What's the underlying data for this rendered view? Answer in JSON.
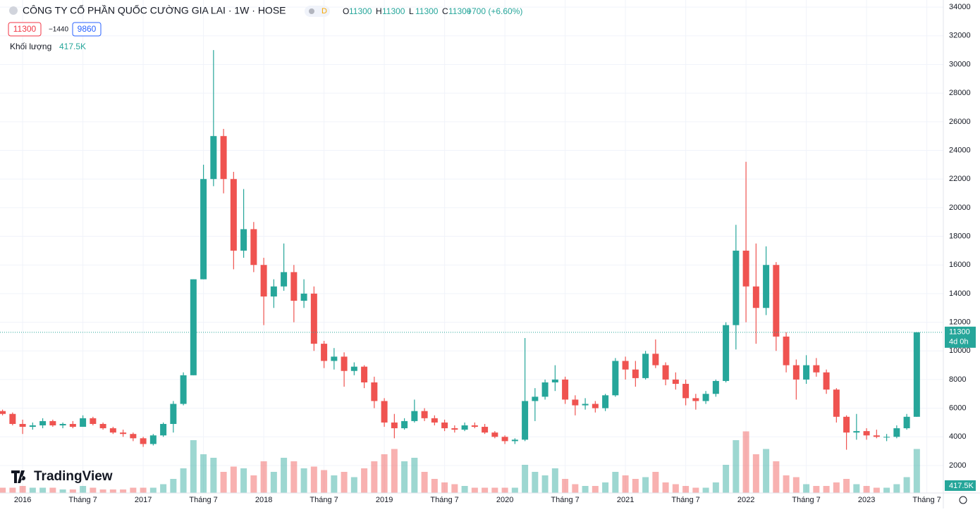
{
  "chart_data": {
    "type": "candlestick",
    "title": "CÔNG TY CỔ PHẦN QUỐC CƯỜNG GIA LAI · 1W · HOSE",
    "timeframe_badge": "D",
    "ohlc": [
      {
        "key": "O",
        "value": 11300
      },
      {
        "key": "H",
        "value": 11300
      },
      {
        "key": "L",
        "value": 11300
      },
      {
        "key": "C",
        "value": 11300
      }
    ],
    "change_label": "+700 (+6.60%)",
    "price_boxes": [
      11300,
      {
        "value": -1440,
        "label": "−1440"
      },
      9860
    ],
    "volume_title": "Khối lượng",
    "volume_value": {
      "value": 417500,
      "label": "417.5K"
    },
    "last_price": 11300,
    "countdown": "4d 0h",
    "brand": "TradingView",
    "up_color": "#26a69a",
    "down_color": "#ef5350",
    "ylim": [
      80,
      34500
    ],
    "yticks": [
      2000,
      4000,
      6000,
      8000,
      10000,
      12000,
      14000,
      16000,
      18000,
      20000,
      22000,
      24000,
      26000,
      28000,
      30000,
      32000,
      34000
    ],
    "vlim": [
      0,
      40000000
    ],
    "grid": true,
    "categories": [
      null,
      null,
      "2016",
      null,
      null,
      null,
      null,
      null,
      "Tháng 7",
      null,
      null,
      null,
      null,
      null,
      "2017",
      null,
      null,
      null,
      null,
      null,
      "Tháng 7",
      null,
      null,
      null,
      null,
      null,
      "2018",
      null,
      null,
      null,
      null,
      null,
      "Tháng 7",
      null,
      null,
      null,
      null,
      null,
      "2019",
      null,
      null,
      null,
      null,
      null,
      "Tháng 7",
      null,
      null,
      null,
      null,
      null,
      "2020",
      null,
      null,
      null,
      null,
      null,
      "Tháng 7",
      null,
      null,
      null,
      null,
      null,
      "2021",
      null,
      null,
      null,
      null,
      null,
      "Tháng 7",
      null,
      null,
      null,
      null,
      null,
      "2022",
      null,
      null,
      null,
      null,
      null,
      "Tháng 7",
      null,
      null,
      null,
      null,
      null,
      "2023",
      null,
      null,
      null,
      null,
      null,
      "Tháng 7"
    ],
    "candles": [
      [
        5800,
        5900,
        5500,
        5600
      ],
      [
        5600,
        5700,
        4800,
        4900
      ],
      [
        4900,
        5200,
        4200,
        4700
      ],
      [
        4700,
        5000,
        4500,
        4800
      ],
      [
        4800,
        5300,
        4600,
        5100
      ],
      [
        5100,
        5200,
        4700,
        4800
      ],
      [
        4800,
        5000,
        4600,
        4900
      ],
      [
        4900,
        5100,
        4600,
        4700
      ],
      [
        4700,
        5500,
        4700,
        5300
      ],
      [
        5300,
        5400,
        4800,
        4900
      ],
      [
        4900,
        5000,
        4500,
        4600
      ],
      [
        4600,
        4700,
        4200,
        4300
      ],
      [
        4300,
        4500,
        4000,
        4200
      ],
      [
        4200,
        4300,
        3700,
        3900
      ],
      [
        3900,
        4000,
        3300,
        3500
      ],
      [
        3500,
        4200,
        3400,
        4100
      ],
      [
        4100,
        5000,
        4000,
        4900
      ],
      [
        4900,
        6500,
        4300,
        6300
      ],
      [
        6300,
        8500,
        6200,
        8300
      ],
      [
        8300,
        15000,
        8300,
        15000
      ],
      [
        15000,
        23000,
        15000,
        22000
      ],
      [
        22000,
        31000,
        21500,
        25000
      ],
      [
        25000,
        25500,
        21000,
        22000
      ],
      [
        22000,
        22500,
        15700,
        17000
      ],
      [
        17000,
        21300,
        16500,
        18500
      ],
      [
        18500,
        19000,
        15500,
        16000
      ],
      [
        16000,
        16500,
        11800,
        13800
      ],
      [
        13800,
        15000,
        13000,
        14500
      ],
      [
        14500,
        17500,
        14200,
        15500
      ],
      [
        15500,
        16000,
        12000,
        13500
      ],
      [
        13500,
        15000,
        13000,
        14000
      ],
      [
        14000,
        14500,
        10000,
        10500
      ],
      [
        10500,
        10700,
        8800,
        9300
      ],
      [
        9300,
        10200,
        8700,
        9600
      ],
      [
        9600,
        9900,
        7500,
        8600
      ],
      [
        8600,
        9200,
        8300,
        8900
      ],
      [
        8900,
        9000,
        7400,
        7800
      ],
      [
        7800,
        8200,
        6000,
        6500
      ],
      [
        6500,
        6700,
        4700,
        5000
      ],
      [
        5000,
        5600,
        3900,
        4600
      ],
      [
        4600,
        5300,
        4500,
        5100
      ],
      [
        5100,
        6600,
        5000,
        5800
      ],
      [
        5800,
        6000,
        5100,
        5300
      ],
      [
        5300,
        5500,
        4800,
        5000
      ],
      [
        5000,
        5200,
        4400,
        4600
      ],
      [
        4600,
        4800,
        4300,
        4500
      ],
      [
        4500,
        5000,
        4400,
        4800
      ],
      [
        4800,
        5000,
        4600,
        4700
      ],
      [
        4700,
        4900,
        4200,
        4300
      ],
      [
        4300,
        4400,
        3900,
        4000
      ],
      [
        4000,
        4100,
        3500,
        3700
      ],
      [
        3700,
        3900,
        3500,
        3800
      ],
      [
        3800,
        10900,
        3700,
        6500
      ],
      [
        6500,
        7400,
        5100,
        6800
      ],
      [
        6800,
        8000,
        6600,
        7800
      ],
      [
        7800,
        9000,
        7200,
        8000
      ],
      [
        8000,
        8200,
        6300,
        6600
      ],
      [
        6600,
        6900,
        5500,
        6200
      ],
      [
        6200,
        6700,
        5900,
        6300
      ],
      [
        6300,
        6500,
        5700,
        6000
      ],
      [
        6000,
        7000,
        5800,
        6900
      ],
      [
        6900,
        9500,
        6800,
        9300
      ],
      [
        9300,
        9600,
        8000,
        8700
      ],
      [
        8700,
        9300,
        7500,
        8100
      ],
      [
        8100,
        10000,
        8000,
        9800
      ],
      [
        9800,
        10800,
        8800,
        9000
      ],
      [
        9000,
        9200,
        7600,
        8000
      ],
      [
        8000,
        8500,
        7300,
        7700
      ],
      [
        7700,
        8000,
        6200,
        6700
      ],
      [
        6700,
        7000,
        5900,
        6500
      ],
      [
        6500,
        7200,
        6300,
        7000
      ],
      [
        7000,
        8000,
        6800,
        7900
      ],
      [
        7900,
        12000,
        7800,
        11800
      ],
      [
        11800,
        18800,
        10100,
        17000
      ],
      [
        17000,
        23200,
        12000,
        14500
      ],
      [
        14500,
        17500,
        10500,
        13000
      ],
      [
        13000,
        17300,
        12500,
        16000
      ],
      [
        16000,
        16200,
        10000,
        11000
      ],
      [
        11000,
        11300,
        8500,
        9000
      ],
      [
        9000,
        9400,
        6600,
        8000
      ],
      [
        8000,
        9700,
        7700,
        9000
      ],
      [
        9000,
        9500,
        8200,
        8500
      ],
      [
        8500,
        8700,
        7000,
        7300
      ],
      [
        7300,
        7400,
        5000,
        5400
      ],
      [
        5400,
        5500,
        3100,
        4300
      ],
      [
        4300,
        5600,
        3800,
        4400
      ],
      [
        4400,
        4600,
        3800,
        4100
      ],
      [
        4100,
        4500,
        3900,
        4000
      ],
      [
        4000,
        4200,
        3700,
        4000
      ],
      [
        4000,
        4800,
        3900,
        4600
      ],
      [
        4600,
        5600,
        4500,
        5400
      ],
      [
        5400,
        11300,
        5400,
        11300
      ],
      null
    ],
    "volume": [
      3000000,
      3000000,
      4000000,
      3000000,
      3000000,
      3000000,
      2000000,
      2000000,
      4000000,
      3000000,
      2000000,
      2000000,
      2000000,
      3000000,
      3000000,
      3000000,
      5000000,
      8000000,
      14000000,
      30000000,
      22000000,
      20000000,
      12000000,
      15000000,
      14000000,
      10000000,
      18000000,
      12000000,
      20000000,
      18000000,
      14000000,
      15000000,
      13000000,
      10000000,
      12000000,
      9000000,
      14000000,
      18000000,
      22000000,
      25000000,
      18000000,
      20000000,
      12000000,
      8000000,
      6000000,
      5000000,
      4000000,
      3000000,
      3000000,
      3000000,
      3000000,
      3000000,
      16000000,
      12000000,
      10000000,
      14000000,
      8000000,
      5000000,
      4000000,
      4000000,
      6000000,
      12000000,
      10000000,
      8000000,
      9000000,
      12000000,
      6000000,
      5000000,
      4000000,
      3000000,
      3000000,
      6000000,
      16000000,
      30000000,
      35000000,
      22000000,
      25000000,
      18000000,
      10000000,
      9000000,
      5000000,
      4000000,
      4000000,
      6000000,
      8000000,
      5000000,
      4000000,
      3000000,
      3000000,
      5000000,
      9000000,
      25000000,
      null
    ]
  }
}
